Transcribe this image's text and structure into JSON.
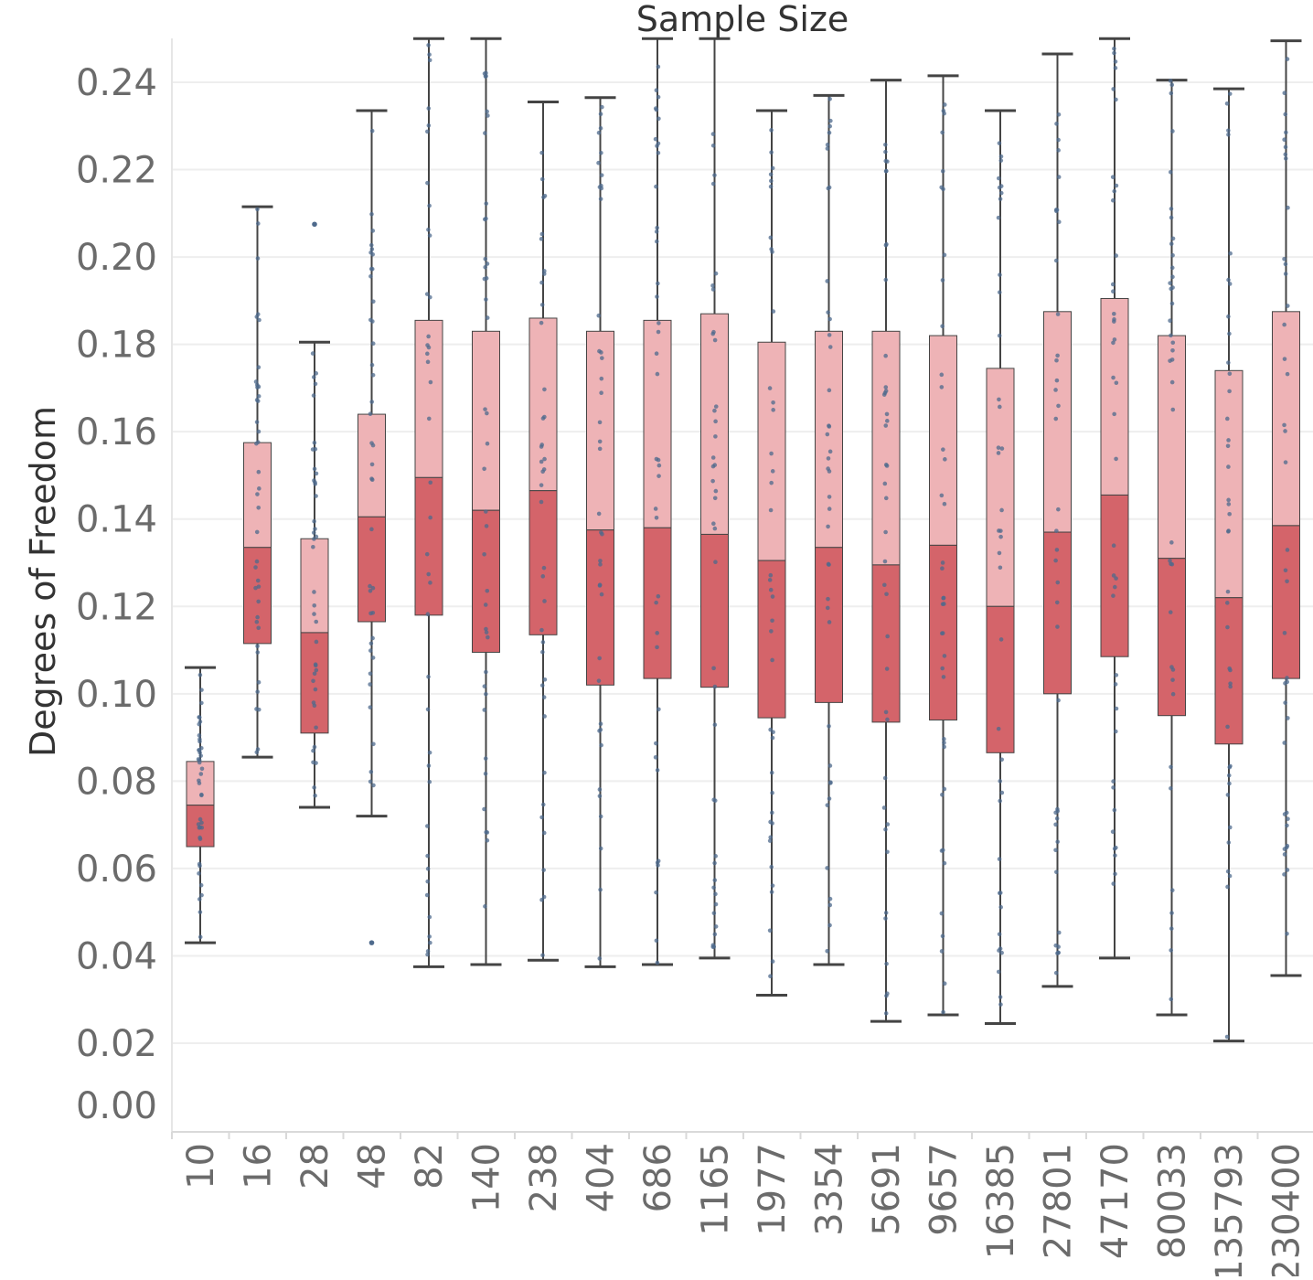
{
  "chart_data": {
    "type": "box",
    "title": "Sample Size",
    "xlabel": "",
    "ylabel": "Degrees of Freedom",
    "ylim": [
      0.0,
      0.25
    ],
    "yticks": [
      "0.00",
      "0.02",
      "0.04",
      "0.06",
      "0.08",
      "0.10",
      "0.12",
      "0.14",
      "0.16",
      "0.18",
      "0.20",
      "0.22",
      "0.24"
    ],
    "grid": true,
    "categories": [
      "10",
      "16",
      "28",
      "48",
      "82",
      "140",
      "238",
      "404",
      "686",
      "1165",
      "1977",
      "3354",
      "5691",
      "9657",
      "16385",
      "27801",
      "47170",
      "80033",
      "135793",
      "230400"
    ],
    "series": [
      {
        "category": "10",
        "whisker_low": 0.043,
        "q1": 0.065,
        "median": 0.0745,
        "q3": 0.0845,
        "whisker_high": 0.106,
        "outliers": []
      },
      {
        "category": "16",
        "whisker_low": 0.0855,
        "q1": 0.1115,
        "median": 0.1335,
        "q3": 0.1575,
        "whisker_high": 0.2115,
        "outliers": []
      },
      {
        "category": "28",
        "whisker_low": 0.074,
        "q1": 0.091,
        "median": 0.114,
        "q3": 0.1355,
        "whisker_high": 0.1805,
        "outliers": [
          0.2075
        ]
      },
      {
        "category": "48",
        "whisker_low": 0.072,
        "q1": 0.1165,
        "median": 0.1405,
        "q3": 0.164,
        "whisker_high": 0.2335,
        "outliers": [
          0.043
        ]
      },
      {
        "category": "82",
        "whisker_low": 0.0375,
        "q1": 0.118,
        "median": 0.1495,
        "q3": 0.1855,
        "whisker_high": 0.25,
        "outliers": []
      },
      {
        "category": "140",
        "whisker_low": 0.038,
        "q1": 0.1095,
        "median": 0.142,
        "q3": 0.183,
        "whisker_high": 0.25,
        "outliers": []
      },
      {
        "category": "238",
        "whisker_low": 0.039,
        "q1": 0.1135,
        "median": 0.1465,
        "q3": 0.186,
        "whisker_high": 0.2355,
        "outliers": []
      },
      {
        "category": "404",
        "whisker_low": 0.0375,
        "q1": 0.102,
        "median": 0.1375,
        "q3": 0.183,
        "whisker_high": 0.2365,
        "outliers": []
      },
      {
        "category": "686",
        "whisker_low": 0.038,
        "q1": 0.1035,
        "median": 0.138,
        "q3": 0.1855,
        "whisker_high": 0.25,
        "outliers": []
      },
      {
        "category": "1165",
        "whisker_low": 0.0395,
        "q1": 0.1015,
        "median": 0.1365,
        "q3": 0.187,
        "whisker_high": 0.25,
        "outliers": []
      },
      {
        "category": "1977",
        "whisker_low": 0.031,
        "q1": 0.0945,
        "median": 0.1305,
        "q3": 0.1805,
        "whisker_high": 0.2335,
        "outliers": []
      },
      {
        "category": "3354",
        "whisker_low": 0.038,
        "q1": 0.098,
        "median": 0.1335,
        "q3": 0.183,
        "whisker_high": 0.237,
        "outliers": []
      },
      {
        "category": "5691",
        "whisker_low": 0.025,
        "q1": 0.0935,
        "median": 0.1295,
        "q3": 0.183,
        "whisker_high": 0.2405,
        "outliers": []
      },
      {
        "category": "9657",
        "whisker_low": 0.0265,
        "q1": 0.094,
        "median": 0.134,
        "q3": 0.182,
        "whisker_high": 0.2415,
        "outliers": []
      },
      {
        "category": "16385",
        "whisker_low": 0.0245,
        "q1": 0.0865,
        "median": 0.12,
        "q3": 0.1745,
        "whisker_high": 0.2335,
        "outliers": []
      },
      {
        "category": "27801",
        "whisker_low": 0.033,
        "q1": 0.1,
        "median": 0.137,
        "q3": 0.1875,
        "whisker_high": 0.2465,
        "outliers": []
      },
      {
        "category": "47170",
        "whisker_low": 0.0395,
        "q1": 0.1085,
        "median": 0.1455,
        "q3": 0.1905,
        "whisker_high": 0.25,
        "outliers": []
      },
      {
        "category": "80033",
        "whisker_low": 0.0265,
        "q1": 0.095,
        "median": 0.131,
        "q3": 0.182,
        "whisker_high": 0.2405,
        "outliers": []
      },
      {
        "category": "135793",
        "whisker_low": 0.0205,
        "q1": 0.0885,
        "median": 0.122,
        "q3": 0.174,
        "whisker_high": 0.2385,
        "outliers": []
      },
      {
        "category": "230400",
        "whisker_low": 0.0355,
        "q1": 0.1035,
        "median": 0.1385,
        "q3": 0.1875,
        "whisker_high": 0.2495,
        "outliers": []
      }
    ],
    "colors": {
      "upper_box": "#eeb3b6",
      "lower_box": "#d4646a",
      "whisker": "#444444",
      "points": "#4e6a8c",
      "grid": "#eeeeee"
    }
  }
}
